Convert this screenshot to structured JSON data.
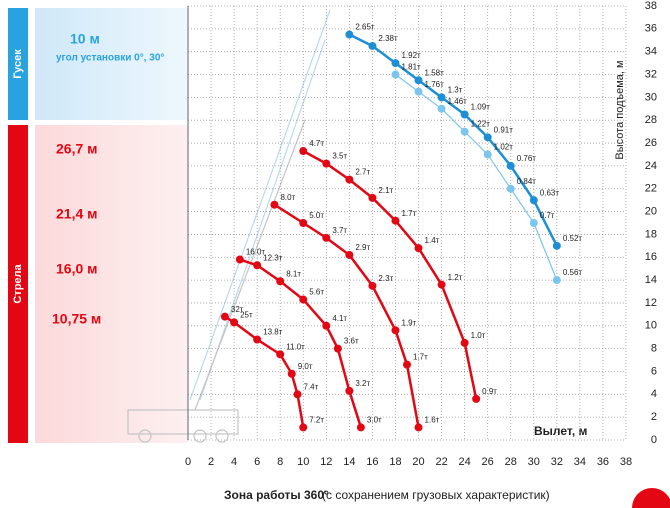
{
  "sidebar": {
    "jib": {
      "label": "Гусек",
      "length": "10 м",
      "angle": "угол установки 0°, 30°"
    },
    "boom": {
      "label": "Стрела",
      "lengths": [
        "26,7 м",
        "21,4 м",
        "16,0 м",
        "10,75 м"
      ]
    }
  },
  "caption": {
    "bold": "Зона работы 360°",
    "normal": "(с сохранением грузовых характеристик)"
  },
  "chart_data": {
    "type": "line",
    "xlabel": "Вылет, м",
    "ylabel": "Высота подъема, м",
    "xlim": [
      0,
      38
    ],
    "ylim": [
      0,
      38
    ],
    "xticks": [
      0,
      2,
      4,
      6,
      8,
      10,
      12,
      14,
      16,
      18,
      20,
      22,
      24,
      26,
      28,
      30,
      32,
      34,
      36,
      38
    ],
    "yticks": [
      0,
      2,
      4,
      6,
      8,
      10,
      12,
      14,
      16,
      18,
      20,
      22,
      24,
      26,
      28,
      30,
      32,
      34,
      36,
      38
    ],
    "grid": true,
    "series": [
      {
        "color": "#1e8fd5",
        "width": 2.5,
        "x": [
          14,
          16,
          18,
          20,
          22,
          24,
          26,
          28,
          30,
          32
        ],
        "values": [
          35.5,
          34.5,
          33,
          31.5,
          30,
          28.5,
          26.5,
          24,
          21,
          17
        ],
        "labels": [
          "2.65т",
          "2.38т",
          "1.92т",
          "1.58т",
          "1.3т",
          "1.09т",
          "0.91т",
          "0.76т",
          "0.63т",
          "0.52т"
        ]
      },
      {
        "color": "#7cc5ee",
        "width": 1.2,
        "x": [
          18,
          20,
          22,
          24,
          26,
          28,
          30,
          32
        ],
        "values": [
          32,
          30.5,
          29,
          27,
          25,
          22,
          19,
          14
        ],
        "labels": [
          "1.81т",
          "1.76т",
          "1.46т",
          "1.22т",
          "1.02т",
          "0.84т",
          "0.7т",
          "0.56т"
        ]
      },
      {
        "color": "#e30613",
        "width": 2.5,
        "x": [
          10,
          12,
          14,
          16,
          18,
          20,
          22,
          24,
          25
        ],
        "values": [
          25.3,
          24.2,
          22.8,
          21.2,
          19.2,
          16.8,
          13.6,
          8.5,
          3.6
        ],
        "labels": [
          "4.7т",
          "3.5т",
          "2.7т",
          "2.1т",
          "1.7т",
          "1.4т",
          "1.2т",
          "1.0т",
          "0.9т"
        ]
      },
      {
        "color": "#e30613",
        "width": 2.5,
        "x": [
          7.5,
          10,
          12,
          14,
          16,
          18,
          19,
          20
        ],
        "values": [
          20.6,
          19,
          17.7,
          16.2,
          13.5,
          9.6,
          6.6,
          1.1
        ],
        "labels": [
          "8.0т",
          "5.0т",
          "3.7т",
          "2.9т",
          "2.3т",
          "1.9т",
          "1.7т",
          "1.6т"
        ]
      },
      {
        "color": "#e30613",
        "width": 2.5,
        "x": [
          4.5,
          6,
          8,
          10,
          12,
          13,
          14,
          15
        ],
        "values": [
          15.8,
          15.3,
          13.9,
          12.3,
          10,
          8,
          4.3,
          1.1
        ],
        "labels": [
          "16.0т",
          "12.3т",
          "8.1т",
          "5.6т",
          "4.1т",
          "3.6т",
          "3.2т",
          "3.0т"
        ]
      },
      {
        "color": "#e30613",
        "width": 2.5,
        "x": [
          3.2,
          4,
          6,
          8,
          9,
          9.5,
          10
        ],
        "values": [
          10.8,
          10.3,
          8.8,
          7.5,
          5.8,
          4,
          1.1
        ],
        "labels": [
          "32т",
          "25т",
          "13.8т",
          "11.0т",
          "9.0т",
          "7.4т",
          "7.2т"
        ]
      }
    ]
  }
}
